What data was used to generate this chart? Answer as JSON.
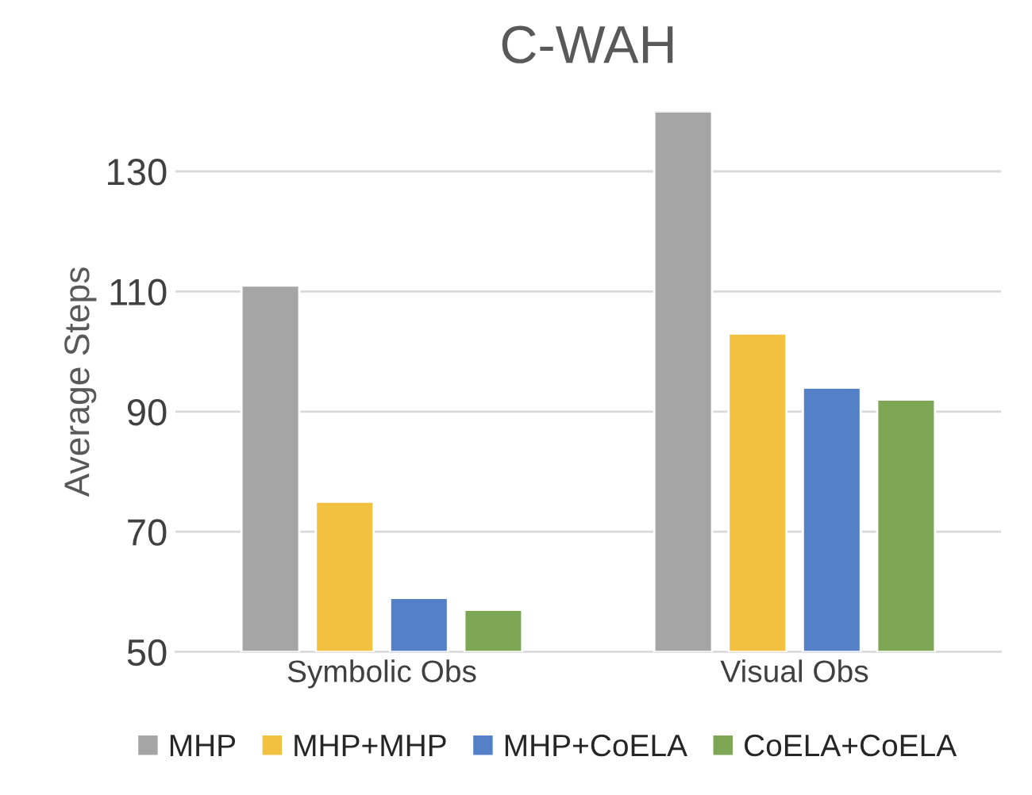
{
  "chart_data": {
    "type": "bar",
    "title": "C-WAH",
    "ylabel": "Average Steps",
    "categories": [
      "Symbolic Obs",
      "Visual Obs"
    ],
    "series": [
      {
        "name": "MHP",
        "color": "#a5a5a5",
        "values": [
          111,
          140
        ]
      },
      {
        "name": "MHP+MHP",
        "color": "#f2c140",
        "values": [
          75,
          103
        ]
      },
      {
        "name": "MHP+CoELA",
        "color": "#5480c8",
        "values": [
          59,
          94
        ]
      },
      {
        "name": "CoELA+CoELA",
        "color": "#7ea755",
        "values": [
          57,
          92
        ]
      }
    ],
    "ylim": [
      50,
      140
    ],
    "yticks": [
      50,
      70,
      90,
      110,
      130
    ],
    "grid": "y",
    "legend": "bottom"
  }
}
